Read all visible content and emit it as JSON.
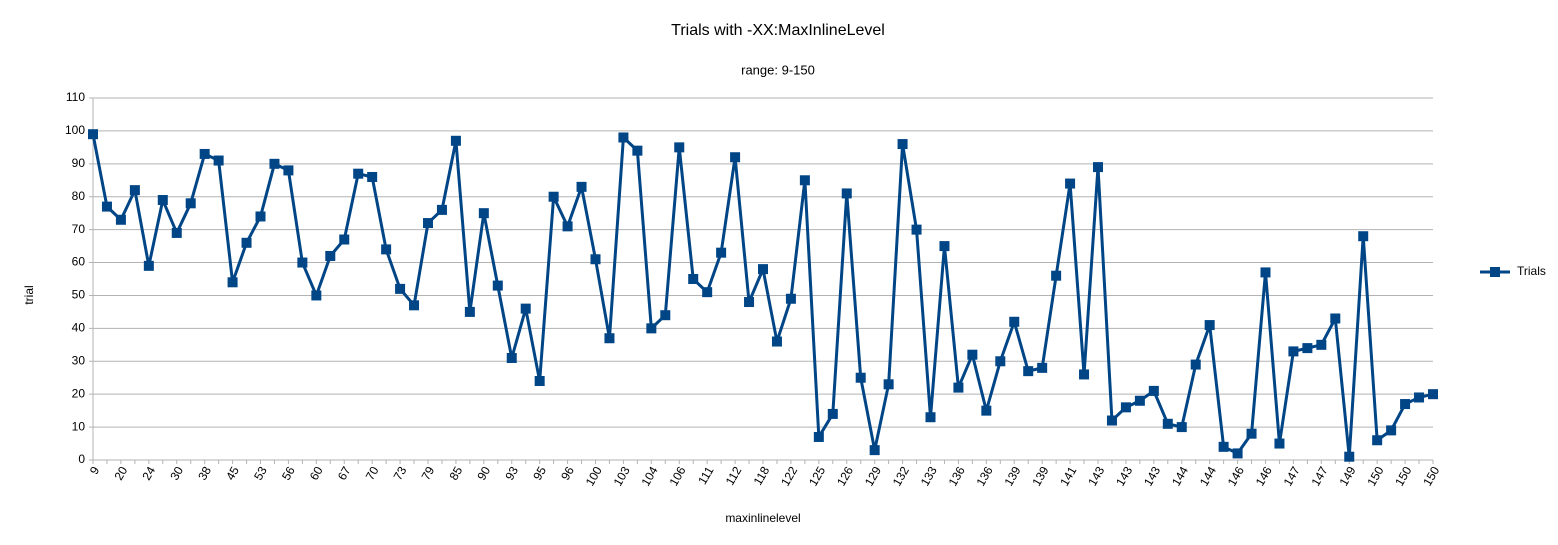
{
  "chart_data": {
    "type": "line",
    "title": "Trials with -XX:MaxInlineLevel",
    "subtitle": "range: 9-150",
    "x_label": "maxinlinelevel",
    "y_label": "trial",
    "categories": [
      "9",
      null,
      "20",
      null,
      "24",
      null,
      "30",
      null,
      "38",
      null,
      "45",
      null,
      "53",
      null,
      "56",
      null,
      "60",
      null,
      "67",
      null,
      "70",
      null,
      "73",
      null,
      "79",
      null,
      "85",
      null,
      "90",
      null,
      "93",
      null,
      "95",
      null,
      "96",
      null,
      "100",
      null,
      "103",
      null,
      "104",
      null,
      "106",
      null,
      "111",
      null,
      "112",
      null,
      "118",
      null,
      "122",
      null,
      "125",
      null,
      "126",
      null,
      "129",
      null,
      "132",
      null,
      "133",
      null,
      "136",
      null,
      "136",
      null,
      "139",
      null,
      "139",
      null,
      "141",
      null,
      "143",
      null,
      "143",
      null,
      "143",
      null,
      "144",
      null,
      "144",
      null,
      "146",
      null,
      "146",
      null,
      "147",
      null,
      "147",
      null,
      "149",
      null,
      "150",
      null,
      "150",
      null,
      "150"
    ],
    "series": [
      {
        "name": "Trials",
        "color": "#004586",
        "values": [
          99,
          77,
          73,
          82,
          59,
          79,
          69,
          78,
          93,
          91,
          54,
          66,
          74,
          90,
          88,
          60,
          50,
          62,
          67,
          87,
          86,
          64,
          52,
          47,
          72,
          76,
          97,
          45,
          75,
          53,
          31,
          46,
          24,
          80,
          71,
          83,
          61,
          37,
          98,
          94,
          40,
          44,
          95,
          55,
          51,
          63,
          92,
          48,
          58,
          36,
          49,
          85,
          7,
          14,
          81,
          25,
          3,
          23,
          96,
          70,
          13,
          65,
          22,
          32,
          15,
          30,
          42,
          27,
          28,
          56,
          84,
          26,
          89,
          12,
          16,
          18,
          21,
          11,
          10,
          29,
          41,
          4,
          2,
          8,
          57,
          5,
          33,
          34,
          35,
          43,
          1,
          68,
          6,
          9,
          17,
          19,
          20
        ]
      }
    ],
    "ylim": [
      0,
      110
    ],
    "yticks": [
      0,
      10,
      20,
      30,
      40,
      50,
      60,
      70,
      80,
      90,
      100,
      110
    ],
    "grid": true,
    "legend": "right"
  }
}
